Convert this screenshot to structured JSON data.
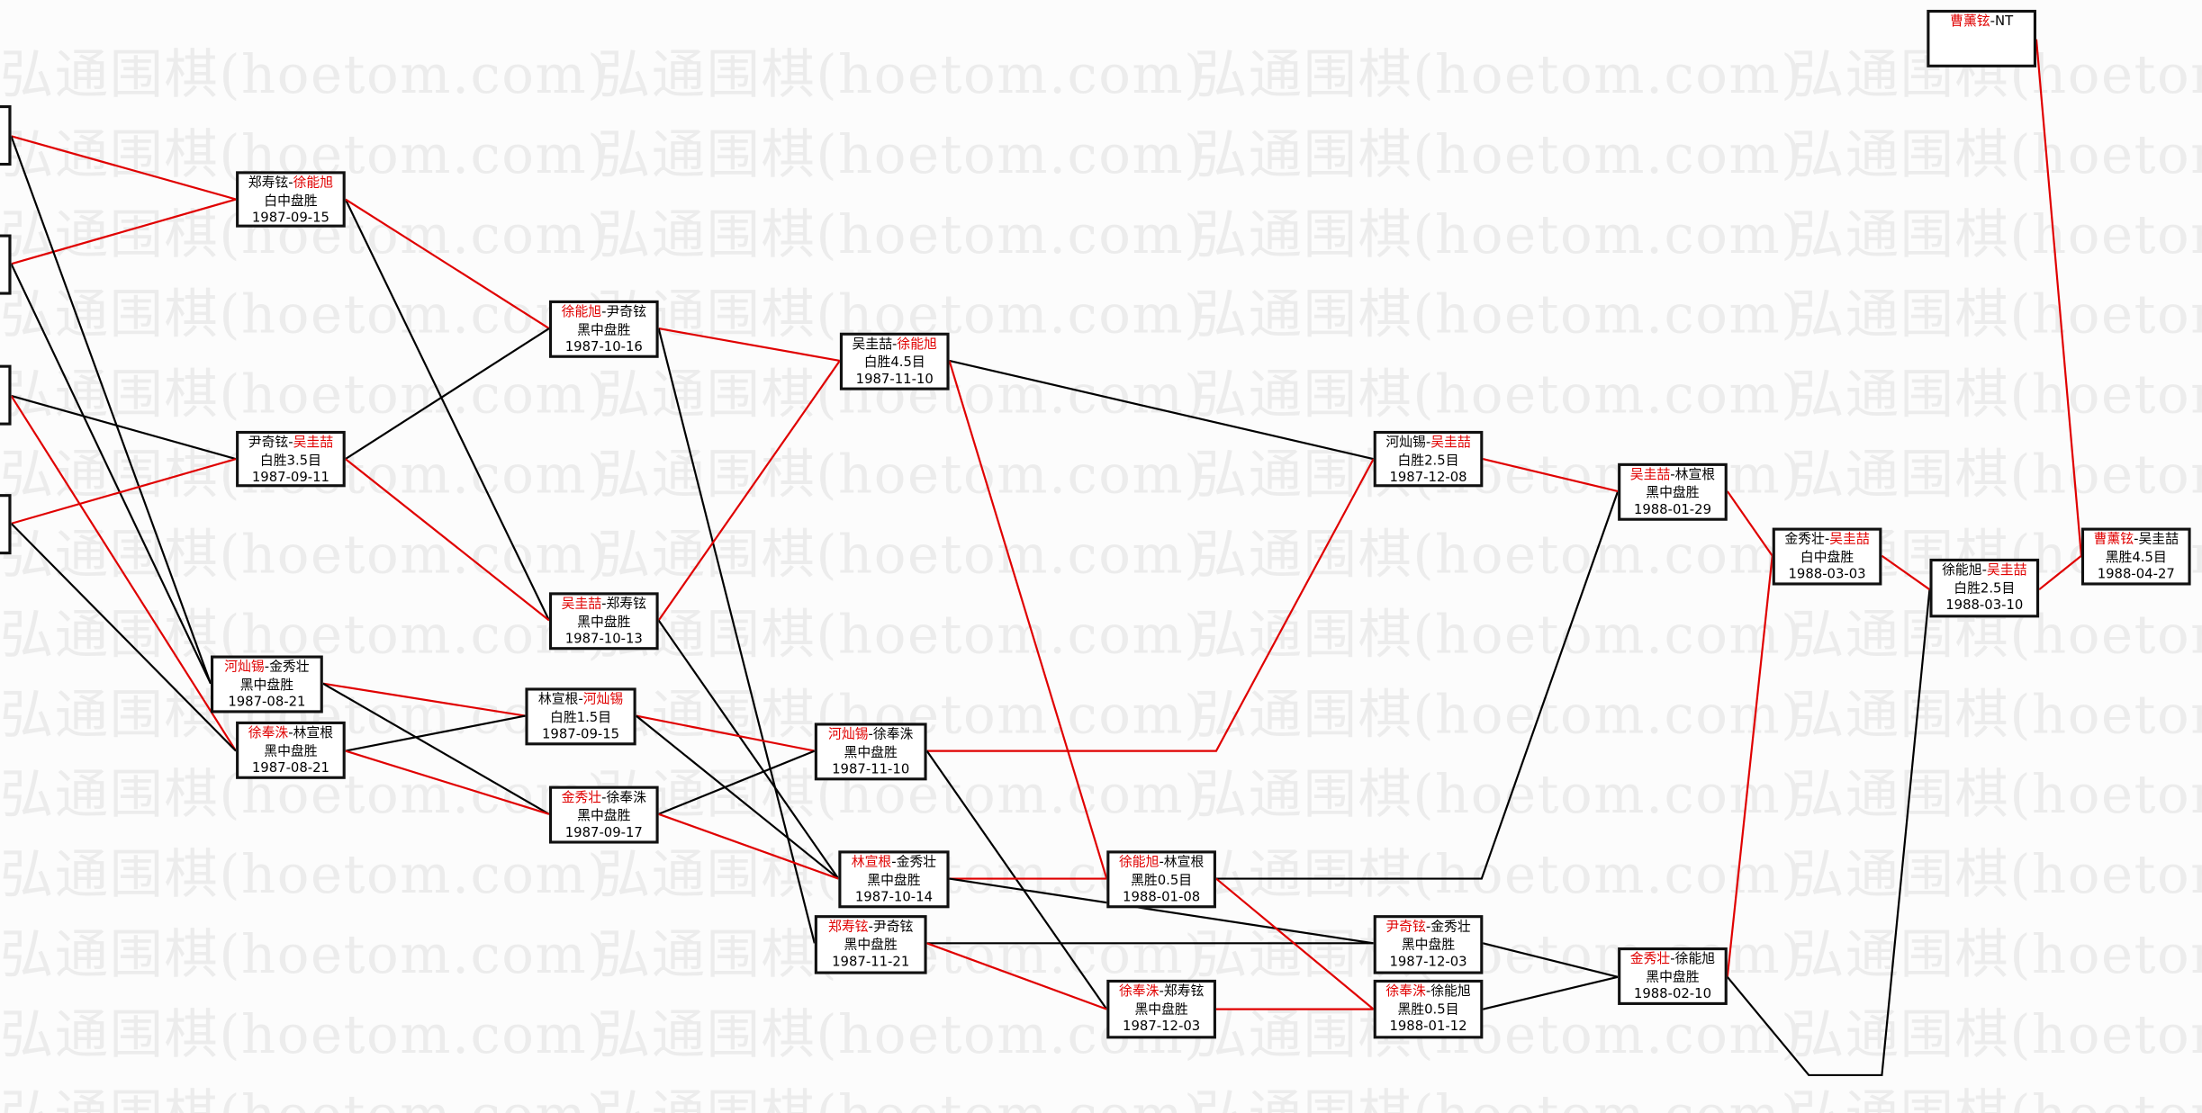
{
  "watermark": "弘通围棋(hoetom.com)",
  "colors": {
    "winner_line": "#e00000",
    "loser_line": "#000000",
    "winner_name": "#e00000"
  },
  "games": [
    {
      "p1": "郑寿铉",
      "p2": "徐能旭",
      "red": 2,
      "result": "白中盘胜",
      "date": "1987-09-15"
    },
    {
      "p1": "尹奇铉",
      "p2": "吴圭喆",
      "red": 2,
      "result": "白胜3.5目",
      "date": "1987-09-11"
    },
    {
      "p1": "河灿锡",
      "p2": "金秀壮",
      "red": 1,
      "result": "黑中盘胜",
      "date": "1987-08-21"
    },
    {
      "p1": "徐奉洙",
      "p2": "林宣根",
      "red": 1,
      "result": "黑中盘胜",
      "date": "1987-08-21"
    },
    {
      "p1": "徐能旭",
      "p2": "尹奇铉",
      "red": 1,
      "result": "黑中盘胜",
      "date": "1987-10-16"
    },
    {
      "p1": "吴圭喆",
      "p2": "郑寿铉",
      "red": 1,
      "result": "黑中盘胜",
      "date": "1987-10-13"
    },
    {
      "p1": "林宣根",
      "p2": "河灿锡",
      "red": 2,
      "result": "白胜1.5目",
      "date": "1987-09-15"
    },
    {
      "p1": "金秀壮",
      "p2": "徐奉洙",
      "red": 1,
      "result": "黑中盘胜",
      "date": "1987-09-17"
    },
    {
      "p1": "吴圭喆",
      "p2": "徐能旭",
      "red": 2,
      "result": "白胜4.5目",
      "date": "1987-11-10"
    },
    {
      "p1": "河灿锡",
      "p2": "徐奉洙",
      "red": 1,
      "result": "黑中盘胜",
      "date": "1987-11-10"
    },
    {
      "p1": "林宣根",
      "p2": "金秀壮",
      "red": 1,
      "result": "黑中盘胜",
      "date": "1987-10-14"
    },
    {
      "p1": "郑寿铉",
      "p2": "尹奇铉",
      "red": 1,
      "result": "黑中盘胜",
      "date": "1987-11-21"
    },
    {
      "p1": "徐能旭",
      "p2": "林宣根",
      "red": 1,
      "result": "黑胜0.5目",
      "date": "1988-01-08"
    },
    {
      "p1": "徐奉洙",
      "p2": "郑寿铉",
      "red": 1,
      "result": "黑中盘胜",
      "date": "1987-12-03"
    },
    {
      "p1": "河灿锡",
      "p2": "吴圭喆",
      "red": 2,
      "result": "白胜2.5目",
      "date": "1987-12-08"
    },
    {
      "p1": "尹奇铉",
      "p2": "金秀壮",
      "red": 1,
      "result": "黑中盘胜",
      "date": "1987-12-03"
    },
    {
      "p1": "徐奉洙",
      "p2": "徐能旭",
      "red": 1,
      "result": "黑胜0.5目",
      "date": "1988-01-12"
    },
    {
      "p1": "吴圭喆",
      "p2": "林宣根",
      "red": 1,
      "result": "黑中盘胜",
      "date": "1988-01-29"
    },
    {
      "p1": "金秀壮",
      "p2": "徐能旭",
      "red": 1,
      "result": "黑中盘胜",
      "date": "1988-02-10"
    },
    {
      "p1": "金秀壮",
      "p2": "吴圭喆",
      "red": 2,
      "result": "白中盘胜",
      "date": "1988-03-03"
    },
    {
      "p1": "徐能旭",
      "p2": "吴圭喆",
      "red": 2,
      "result": "白胜2.5目",
      "date": "1988-03-10"
    },
    {
      "p1": "曹薰铉",
      "p2": "吴圭喆",
      "red": 1,
      "result": "黑胜4.5目",
      "date": "1988-04-27"
    },
    {
      "p1": "曹薰铉",
      "p2": "NT",
      "red": 1,
      "result": "",
      "date": ""
    }
  ]
}
